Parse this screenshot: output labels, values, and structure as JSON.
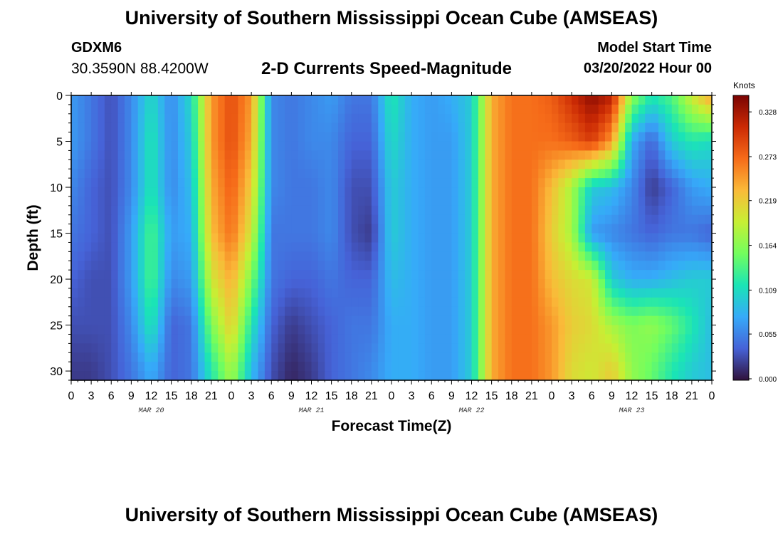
{
  "header": {
    "title": "University of Southern Mississippi Ocean Cube (AMSEAS)",
    "station_id": "GDXM6",
    "station_coords": "30.3590N  88.4200W",
    "subtitle": "2-D Currents Speed-Magnitude",
    "model_start_label": "Model Start Time",
    "model_start_value": "03/20/2022 Hour 00"
  },
  "footer": {
    "title": "University of Southern Mississippi Ocean Cube (AMSEAS)"
  },
  "colorbar": {
    "unit": "Knots",
    "ticks": [
      "0.000",
      "0.055",
      "0.109",
      "0.164",
      "0.219",
      "0.273",
      "0.328"
    ],
    "colors": [
      "#30123b",
      "#4662d7",
      "#36aaf9",
      "#1ae4b6",
      "#72fe5e",
      "#c7ef34",
      "#faba39",
      "#f66b19",
      "#cb2a04",
      "#7a0403"
    ]
  },
  "chart_data": {
    "type": "heatmap",
    "title": "2-D Currents Speed-Magnitude",
    "xlabel": "Forecast Time(Z)",
    "ylabel": "Depth (ft)",
    "x_tick_labels": [
      "0",
      "3",
      "6",
      "9",
      "12",
      "15",
      "18",
      "21",
      "0",
      "3",
      "6",
      "9",
      "12",
      "15",
      "18",
      "21",
      "0",
      "3",
      "6",
      "9",
      "12",
      "15",
      "18",
      "21",
      "0",
      "3",
      "6",
      "9",
      "12",
      "15",
      "18",
      "21",
      "0"
    ],
    "date_labels": [
      {
        "hour": 12,
        "label": "MAR 20"
      },
      {
        "hour": 36,
        "label": "MAR 21"
      },
      {
        "hour": 60,
        "label": "MAR 22"
      },
      {
        "hour": 84,
        "label": "MAR 23"
      }
    ],
    "x_range_hours": [
      0,
      96
    ],
    "y_ticks": [
      0,
      5,
      10,
      15,
      20,
      25,
      30
    ],
    "ylim_ft": [
      0,
      31
    ],
    "value_range_knots": [
      0,
      0.35
    ],
    "depth_levels_ft": [
      0,
      5,
      10,
      15,
      20,
      25,
      30
    ],
    "hours": [
      0,
      3,
      6,
      9,
      12,
      15,
      18,
      21,
      24,
      27,
      30,
      33,
      36,
      39,
      42,
      45,
      48,
      51,
      54,
      57,
      60,
      63,
      66,
      69,
      72,
      75,
      78,
      81,
      84,
      87,
      90,
      93,
      96
    ],
    "speed_knots": [
      [
        0.07,
        0.05,
        0.03,
        0.06,
        0.11,
        0.06,
        0.11,
        0.25,
        0.29,
        0.25,
        0.06,
        0.05,
        0.06,
        0.07,
        0.05,
        0.05,
        0.12,
        0.08,
        0.07,
        0.08,
        0.1,
        0.24,
        0.27,
        0.27,
        0.28,
        0.31,
        0.34,
        0.32,
        0.17,
        0.12,
        0.14,
        0.2,
        0.25
      ],
      [
        0.07,
        0.05,
        0.03,
        0.06,
        0.12,
        0.06,
        0.1,
        0.25,
        0.29,
        0.24,
        0.06,
        0.05,
        0.06,
        0.06,
        0.04,
        0.04,
        0.11,
        0.08,
        0.07,
        0.07,
        0.1,
        0.24,
        0.27,
        0.27,
        0.27,
        0.28,
        0.3,
        0.25,
        0.08,
        0.04,
        0.1,
        0.12,
        0.11
      ],
      [
        0.06,
        0.04,
        0.03,
        0.06,
        0.12,
        0.06,
        0.09,
        0.24,
        0.28,
        0.22,
        0.06,
        0.05,
        0.05,
        0.06,
        0.03,
        0.03,
        0.1,
        0.08,
        0.07,
        0.07,
        0.1,
        0.24,
        0.27,
        0.27,
        0.23,
        0.18,
        0.1,
        0.09,
        0.06,
        0.02,
        0.04,
        0.07,
        0.08
      ],
      [
        0.05,
        0.04,
        0.03,
        0.07,
        0.14,
        0.07,
        0.08,
        0.23,
        0.27,
        0.2,
        0.05,
        0.05,
        0.05,
        0.06,
        0.03,
        0.02,
        0.1,
        0.08,
        0.07,
        0.07,
        0.1,
        0.24,
        0.27,
        0.27,
        0.22,
        0.18,
        0.07,
        0.06,
        0.05,
        0.04,
        0.05,
        0.05,
        0.04
      ],
      [
        0.04,
        0.03,
        0.03,
        0.07,
        0.14,
        0.06,
        0.07,
        0.2,
        0.24,
        0.16,
        0.05,
        0.04,
        0.04,
        0.05,
        0.04,
        0.04,
        0.09,
        0.08,
        0.07,
        0.07,
        0.1,
        0.24,
        0.27,
        0.27,
        0.23,
        0.21,
        0.2,
        0.1,
        0.08,
        0.08,
        0.09,
        0.1,
        0.1
      ],
      [
        0.03,
        0.03,
        0.03,
        0.06,
        0.12,
        0.04,
        0.05,
        0.16,
        0.22,
        0.12,
        0.04,
        0.02,
        0.03,
        0.04,
        0.05,
        0.05,
        0.08,
        0.08,
        0.07,
        0.07,
        0.1,
        0.24,
        0.27,
        0.27,
        0.25,
        0.22,
        0.21,
        0.18,
        0.16,
        0.17,
        0.15,
        0.12,
        0.09
      ],
      [
        0.02,
        0.02,
        0.03,
        0.05,
        0.08,
        0.04,
        0.05,
        0.12,
        0.18,
        0.09,
        0.03,
        0.01,
        0.02,
        0.04,
        0.05,
        0.06,
        0.08,
        0.08,
        0.07,
        0.07,
        0.1,
        0.24,
        0.27,
        0.27,
        0.25,
        0.21,
        0.2,
        0.22,
        0.17,
        0.15,
        0.12,
        0.1,
        0.09
      ]
    ]
  }
}
